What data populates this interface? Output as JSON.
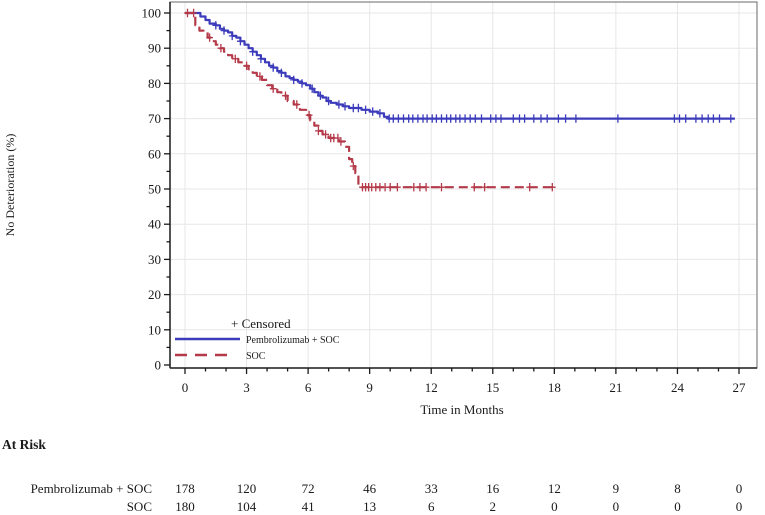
{
  "figure": {
    "kind": "Kaplan-Meier time-to-deterioration plot",
    "background": "#ffffff"
  },
  "chart_data": {
    "type": "line",
    "subtype": "kaplan-meier-step",
    "title": "",
    "xlabel": "Time in Months",
    "ylabel": "No Deterioration (%)",
    "xlim": [
      0,
      27
    ],
    "ylim": [
      0,
      100
    ],
    "xticks": [
      0,
      3,
      6,
      9,
      12,
      15,
      18,
      21,
      24,
      27
    ],
    "yticks": [
      0,
      10,
      20,
      30,
      40,
      50,
      60,
      70,
      80,
      90,
      100
    ],
    "grid": true,
    "grid_color": "#e7e7e7",
    "axis_color": "#1a1a1a",
    "legend": {
      "position": "inside-bottom-left",
      "censored_label": "+ Censored"
    },
    "series": [
      {
        "name": "Pembrolizumab + SOC",
        "color": "#3b3bbb",
        "style": "solid",
        "steps": [
          [
            0,
            100
          ],
          [
            0.75,
            99
          ],
          [
            1.0,
            98
          ],
          [
            1.2,
            97
          ],
          [
            1.5,
            96.5
          ],
          [
            1.7,
            95.5
          ],
          [
            1.9,
            95
          ],
          [
            2.1,
            94.5
          ],
          [
            2.3,
            93.5
          ],
          [
            2.5,
            93
          ],
          [
            2.7,
            92
          ],
          [
            2.9,
            91
          ],
          [
            3.1,
            90
          ],
          [
            3.3,
            89
          ],
          [
            3.5,
            88
          ],
          [
            3.7,
            87
          ],
          [
            3.9,
            86
          ],
          [
            4.1,
            85
          ],
          [
            4.3,
            84.5
          ],
          [
            4.5,
            83.5
          ],
          [
            4.7,
            83
          ],
          [
            4.9,
            82
          ],
          [
            5.1,
            81.5
          ],
          [
            5.3,
            81
          ],
          [
            5.5,
            80.5
          ],
          [
            5.7,
            80
          ],
          [
            5.9,
            79.5
          ],
          [
            6.1,
            78.5
          ],
          [
            6.3,
            77.5
          ],
          [
            6.5,
            76.5
          ],
          [
            6.7,
            76
          ],
          [
            6.9,
            75
          ],
          [
            7.1,
            74.5
          ],
          [
            7.4,
            74
          ],
          [
            7.7,
            73.5
          ],
          [
            8.0,
            73
          ],
          [
            8.6,
            72.5
          ],
          [
            9.0,
            72
          ],
          [
            9.4,
            71.5
          ],
          [
            9.7,
            70.5
          ],
          [
            9.9,
            70
          ],
          [
            26.8,
            70
          ]
        ],
        "censor_times": [
          1.5,
          1.9,
          2.3,
          2.7,
          3.3,
          3.7,
          4.3,
          4.7,
          5.3,
          5.7,
          6.2,
          6.6,
          7.0,
          7.5,
          7.8,
          8.2,
          8.45,
          8.8,
          9.15,
          9.5,
          9.95,
          10.15,
          10.4,
          10.65,
          10.9,
          11.1,
          11.35,
          11.6,
          11.8,
          12.05,
          12.25,
          12.5,
          12.75,
          12.95,
          13.2,
          13.4,
          13.65,
          13.9,
          14.15,
          14.45,
          14.9,
          15.15,
          15.4,
          16.0,
          16.3,
          16.55,
          17.0,
          17.35,
          17.65,
          18.2,
          18.55,
          19.05,
          21.1,
          23.85,
          24.1,
          24.4,
          24.9,
          25.2,
          25.5,
          25.75,
          26.05,
          26.6
        ]
      },
      {
        "name": "SOC",
        "color": "#b43a4a",
        "style": "dashed",
        "steps": [
          [
            0,
            100
          ],
          [
            0.5,
            96.5
          ],
          [
            0.7,
            95
          ],
          [
            0.9,
            94.5
          ],
          [
            1.1,
            93
          ],
          [
            1.3,
            92
          ],
          [
            1.5,
            91
          ],
          [
            1.7,
            90
          ],
          [
            1.9,
            89
          ],
          [
            2.1,
            88
          ],
          [
            2.3,
            87
          ],
          [
            2.6,
            86
          ],
          [
            2.9,
            85
          ],
          [
            3.1,
            84
          ],
          [
            3.3,
            83
          ],
          [
            3.5,
            82
          ],
          [
            3.75,
            81
          ],
          [
            4.0,
            79.5
          ],
          [
            4.25,
            78.5
          ],
          [
            4.5,
            77.5
          ],
          [
            4.7,
            76.5
          ],
          [
            5.0,
            75
          ],
          [
            5.3,
            74
          ],
          [
            5.6,
            72.5
          ],
          [
            5.9,
            71
          ],
          [
            6.1,
            69.5
          ],
          [
            6.3,
            68
          ],
          [
            6.5,
            66.5
          ],
          [
            6.7,
            65.5
          ],
          [
            7.0,
            64.5
          ],
          [
            7.5,
            63.5
          ],
          [
            7.8,
            62
          ],
          [
            8.0,
            58.5
          ],
          [
            8.15,
            56.5
          ],
          [
            8.3,
            54.5
          ],
          [
            8.45,
            51
          ],
          [
            8.6,
            50.5
          ],
          [
            18.05,
            50.5
          ]
        ],
        "censor_times": [
          0.12,
          0.42,
          1.2,
          1.75,
          2.45,
          3.0,
          3.65,
          4.3,
          4.9,
          5.45,
          6.05,
          6.5,
          6.85,
          7.1,
          7.25,
          7.45,
          7.6,
          8.2,
          8.65,
          8.8,
          8.95,
          9.1,
          9.3,
          9.5,
          9.75,
          10.0,
          10.35,
          11.15,
          11.45,
          11.75,
          12.5,
          14.1,
          14.6,
          16.8,
          17.9
        ]
      }
    ],
    "at_risk": {
      "title": "At Risk",
      "times": [
        0,
        3,
        6,
        9,
        12,
        15,
        18,
        21,
        24,
        27
      ],
      "rows": [
        {
          "label": "Pembrolizumab + SOC",
          "counts": [
            178,
            120,
            72,
            46,
            33,
            16,
            12,
            9,
            8,
            0
          ]
        },
        {
          "label": "SOC",
          "counts": [
            180,
            104,
            41,
            13,
            6,
            2,
            0,
            0,
            0,
            0
          ]
        }
      ]
    }
  }
}
